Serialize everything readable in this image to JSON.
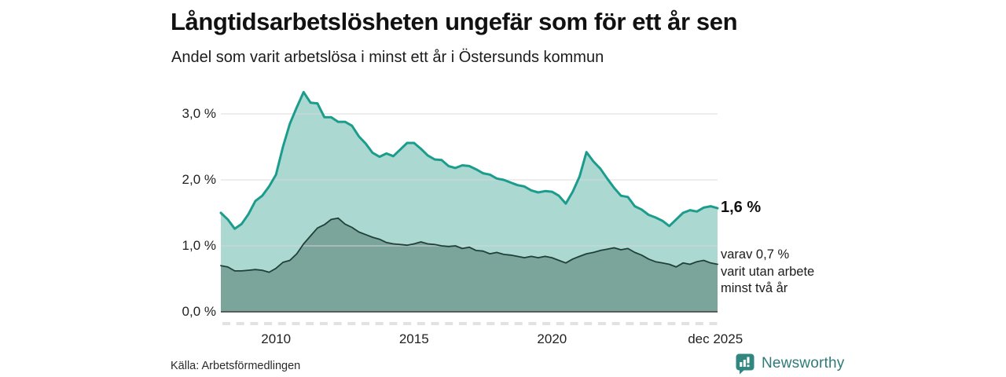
{
  "header": {
    "title": "Långtidsarbetslösheten ungefär som för ett år sen",
    "subtitle": "Andel som varit arbetslösa i minst ett år i Östersunds kommun"
  },
  "annotations": {
    "latest_total_label": "1,6 %",
    "latest_sub_lines": [
      "varav 0,7 %",
      "varit utan arbete",
      "minst två år"
    ]
  },
  "footer": {
    "source": "Källa: Arbetsförmedlingen",
    "brand_name": "Newsworthy"
  },
  "colors": {
    "series1_line": "#1b9c8c",
    "series1_fill": "#abd8d1",
    "series2_line": "#20403a",
    "series2_fill": "#7ba49b",
    "gridline": "#d9d9d9",
    "axis_line": "#3a3a3a",
    "minor_tick": "#e2e2e2",
    "brand": "#2f7b79",
    "brand_badge": "#318680"
  },
  "chart_data": {
    "type": "area",
    "title": "Långtidsarbetslösheten ungefär som för ett år sen",
    "subtitle": "Andel som varit arbetslösa i minst ett år i Östersunds kommun",
    "unit": "percent",
    "x_start": 2008.0,
    "x_step": 0.25,
    "xlim": [
      2008.0,
      2026.0
    ],
    "ylim": [
      0.0,
      3.5
    ],
    "grid": true,
    "x_ticks": [
      {
        "label": "2010",
        "year": 2010.0
      },
      {
        "label": "2015",
        "year": 2015.0
      },
      {
        "label": "2020",
        "year": 2020.0
      },
      {
        "label": "dec 2025",
        "year": 2025.92
      }
    ],
    "y_ticks": [
      {
        "label": "0,0 %",
        "value": 0.0
      },
      {
        "label": "1,0 %",
        "value": 1.0
      },
      {
        "label": "2,0 %",
        "value": 2.0
      },
      {
        "label": "3,0 %",
        "value": 3.0
      }
    ],
    "series": [
      {
        "name": "Arbetslösa minst ett år",
        "latest_value": 1.6,
        "values": [
          1.5,
          1.4,
          1.26,
          1.33,
          1.48,
          1.68,
          1.76,
          1.9,
          2.08,
          2.5,
          2.85,
          3.1,
          3.33,
          3.17,
          3.16,
          2.95,
          2.95,
          2.88,
          2.88,
          2.82,
          2.66,
          2.55,
          2.41,
          2.35,
          2.4,
          2.36,
          2.46,
          2.56,
          2.56,
          2.47,
          2.37,
          2.31,
          2.3,
          2.21,
          2.18,
          2.22,
          2.21,
          2.16,
          2.1,
          2.08,
          2.02,
          2.0,
          1.96,
          1.92,
          1.9,
          1.84,
          1.81,
          1.83,
          1.82,
          1.76,
          1.64,
          1.82,
          2.05,
          2.42,
          2.28,
          2.17,
          2.02,
          1.88,
          1.76,
          1.74,
          1.6,
          1.55,
          1.47,
          1.43,
          1.38,
          1.3,
          1.4,
          1.5,
          1.54,
          1.52,
          1.58,
          1.6,
          1.57
        ]
      },
      {
        "name": "Varav utan arbete minst två år",
        "latest_value": 0.7,
        "values": [
          0.7,
          0.68,
          0.62,
          0.62,
          0.63,
          0.64,
          0.63,
          0.6,
          0.66,
          0.75,
          0.78,
          0.88,
          1.03,
          1.15,
          1.27,
          1.32,
          1.4,
          1.42,
          1.33,
          1.28,
          1.21,
          1.17,
          1.13,
          1.1,
          1.05,
          1.03,
          1.02,
          1.01,
          1.03,
          1.06,
          1.03,
          1.02,
          1.0,
          0.99,
          1.0,
          0.96,
          0.98,
          0.93,
          0.92,
          0.88,
          0.9,
          0.87,
          0.86,
          0.84,
          0.82,
          0.84,
          0.82,
          0.84,
          0.82,
          0.78,
          0.74,
          0.8,
          0.84,
          0.88,
          0.9,
          0.93,
          0.95,
          0.97,
          0.94,
          0.96,
          0.9,
          0.86,
          0.8,
          0.76,
          0.74,
          0.72,
          0.68,
          0.74,
          0.72,
          0.76,
          0.78,
          0.74,
          0.72
        ]
      }
    ]
  }
}
